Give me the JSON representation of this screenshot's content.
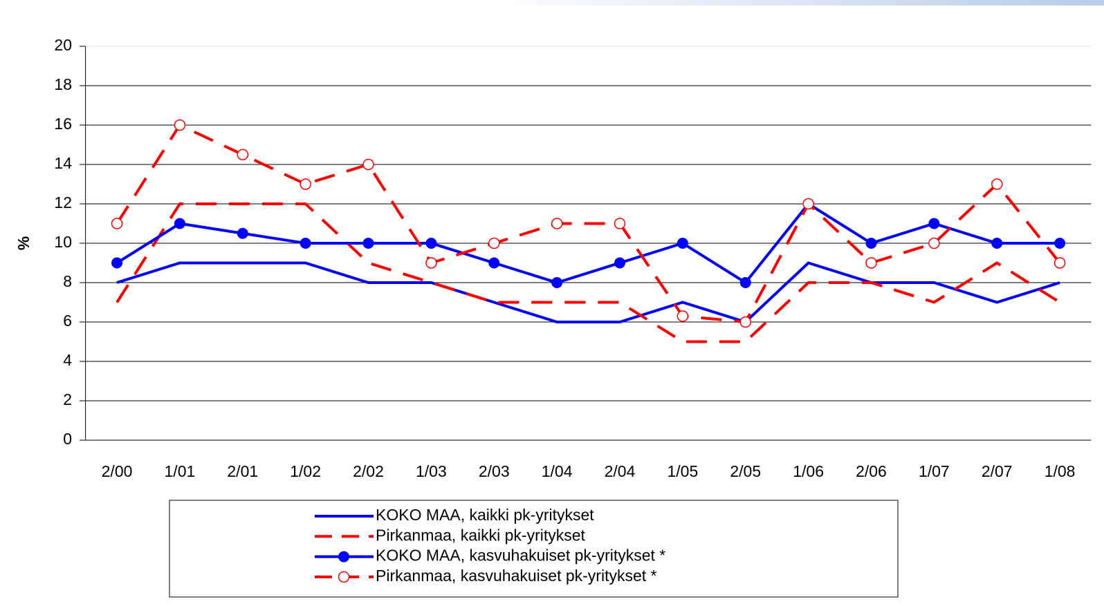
{
  "chart_data": {
    "type": "line",
    "ylabel": "%",
    "categories": [
      "2/00",
      "1/01",
      "2/01",
      "1/02",
      "2/02",
      "1/03",
      "2/03",
      "1/04",
      "2/04",
      "1/05",
      "2/05",
      "1/06",
      "2/06",
      "1/07",
      "2/07",
      "1/08"
    ],
    "series": [
      {
        "name": "KOKO MAA, kaikki pk-yritykset",
        "color": "#0000ff",
        "dashed": false,
        "marker": "none",
        "values": [
          8,
          9,
          9,
          9,
          8,
          8,
          7,
          6,
          6,
          7,
          6,
          9,
          8,
          8,
          7,
          8
        ]
      },
      {
        "name": "Pirkanmaa, kaikki pk-yritykset",
        "color": "#ff0000",
        "dashed": true,
        "marker": "none",
        "values": [
          7,
          12,
          12,
          12,
          9,
          8,
          7,
          7,
          7,
          5,
          5,
          8,
          8,
          7,
          9,
          7
        ]
      },
      {
        "name": "KOKO MAA, kasvuhakuiset pk-yritykset *",
        "color": "#0000ff",
        "dashed": false,
        "marker": "filled",
        "values": [
          9,
          11,
          10.5,
          10,
          10,
          10,
          9,
          8,
          9,
          10,
          8,
          12,
          10,
          11,
          10,
          10
        ]
      },
      {
        "name": "Pirkanmaa, kasvuhakuiset pk-yritykset *",
        "color": "#ff0000",
        "dashed": true,
        "marker": "open",
        "values": [
          11,
          16,
          14.5,
          13,
          14,
          9,
          10,
          11,
          11,
          6.3,
          6,
          12,
          9,
          10,
          13,
          9
        ]
      }
    ],
    "ylim": [
      0,
      20
    ],
    "yticks": [
      0,
      2,
      4,
      6,
      8,
      10,
      12,
      14,
      16,
      18,
      20
    ],
    "grid": true,
    "legend": "bottom"
  }
}
